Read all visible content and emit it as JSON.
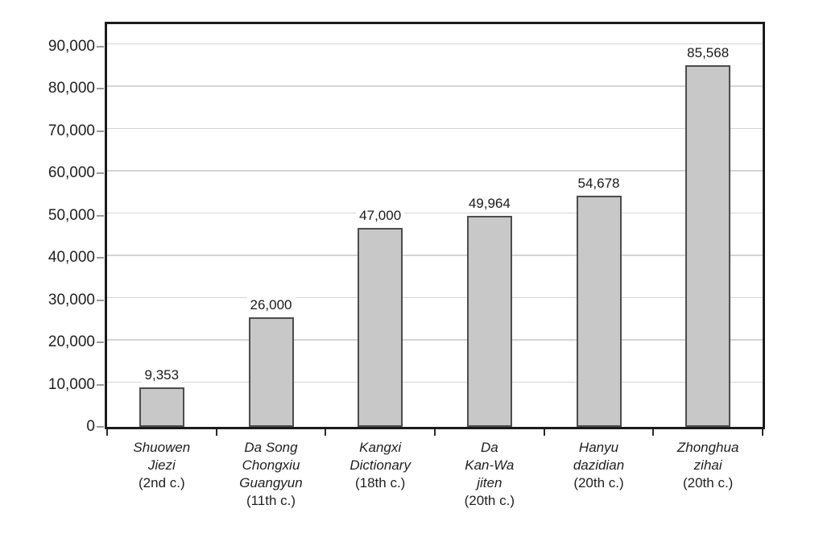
{
  "chart_data": {
    "type": "bar",
    "title": "",
    "xlabel": "",
    "ylabel": "",
    "grid": true,
    "legend": "none",
    "ylim": [
      0,
      95000
    ],
    "y_ticks": [
      0,
      10000,
      20000,
      30000,
      40000,
      50000,
      60000,
      70000,
      80000,
      90000
    ],
    "y_tick_labels": [
      "0",
      "10,000",
      "20,000",
      "30,000",
      "40,000",
      "50,000",
      "60,000",
      "70,000",
      "80,000",
      "90,000"
    ],
    "categories": [
      {
        "name_lines": [
          "Shuowen",
          "Jiezi"
        ],
        "date": "(2nd c.)"
      },
      {
        "name_lines": [
          "Da Song",
          "Chongxiu",
          "Guangyun"
        ],
        "date": "(11th c.)"
      },
      {
        "name_lines": [
          "Kangxi",
          "Dictionary"
        ],
        "date": "(18th c.)"
      },
      {
        "name_lines": [
          "Da",
          "Kan-Wa",
          "jiten"
        ],
        "date": "(20th c.)"
      },
      {
        "name_lines": [
          "Hanyu",
          "dazidian"
        ],
        "date": "(20th c.)"
      },
      {
        "name_lines": [
          "Zhonghua",
          "zihai"
        ],
        "date": "(20th c.)"
      }
    ],
    "values": [
      9353,
      26000,
      47000,
      49964,
      54678,
      85568
    ],
    "value_labels": [
      "9,353",
      "26,000",
      "47,000",
      "49,964",
      "54,678",
      "85,568"
    ]
  },
  "colors": {
    "bar_fill": "#c8c8c8",
    "bar_border": "#4d4d4d",
    "gridline": "#d4d4d4",
    "frame": "#1c1c1c",
    "text": "#1f1f1f"
  }
}
